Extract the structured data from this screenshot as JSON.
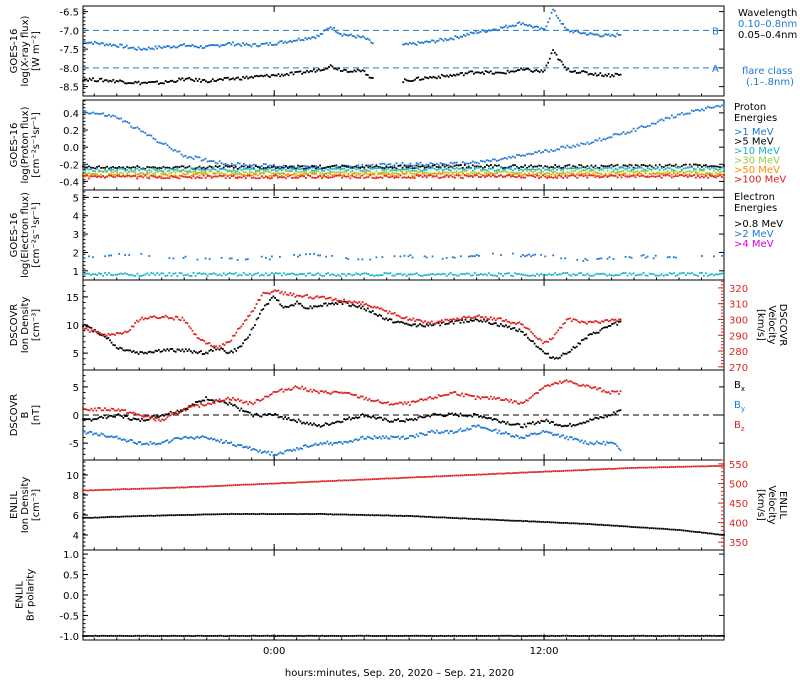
{
  "xaxis": {
    "title": "hours:minutes, Sep. 20, 2020 – Sep. 21, 2020",
    "ticks": [
      "0:00",
      "12:00"
    ],
    "tick_hours": [
      0,
      12
    ],
    "range_hours": [
      -8.5,
      20
    ]
  },
  "colors": {
    "black": "#000000",
    "blue": "#1f78d1",
    "cyan": "#16b3c4",
    "green": "#9acd32",
    "orange": "#ff8c00",
    "red": "#dd2222",
    "magenta": "#e000e0"
  },
  "chart_data": [
    {
      "type": "scatter",
      "id": "xray",
      "ylabel": [
        "GOES-16",
        "log(X-ray flux)",
        "[W m⁻²]"
      ],
      "ylim": [
        -8.75,
        -6.35
      ],
      "yticks": [
        -6.5,
        -7.0,
        -7.5,
        -8.0,
        -8.5
      ],
      "ytick_labels": [
        "-6.5",
        "-7.0",
        "-7.5",
        "-8.0",
        "-8.5"
      ],
      "reference_lines": [
        {
          "y": -7.0,
          "label": "B"
        },
        {
          "y": -8.0,
          "label": "A"
        }
      ],
      "legend": {
        "title": "Wavelength",
        "entries": [
          "0.10–0.8nm",
          "0.05–0.4nm"
        ],
        "extra": [
          "flare class",
          "(.1–.8nm)"
        ]
      },
      "data_gaps_hours": [
        [
          4.4,
          5.7
        ],
        [
          15.4,
          20
        ]
      ],
      "series": [
        {
          "color": "blue",
          "x": [
            -8.5,
            -7,
            -6,
            -5,
            -4,
            -3,
            -2,
            -1,
            0,
            1,
            2,
            2.5,
            3,
            4,
            4.4,
            5.7,
            7,
            8,
            9,
            10,
            11,
            12,
            12.4,
            13,
            14,
            15,
            15.4
          ],
          "y": [
            -7.3,
            -7.4,
            -7.5,
            -7.45,
            -7.4,
            -7.45,
            -7.35,
            -7.4,
            -7.35,
            -7.25,
            -7.15,
            -6.9,
            -7.1,
            -7.2,
            -7.35,
            -7.4,
            -7.3,
            -7.2,
            -7.05,
            -6.95,
            -6.8,
            -7.0,
            -6.45,
            -7.0,
            -7.1,
            -7.15,
            -7.1
          ]
        },
        {
          "color": "black",
          "x": [
            -8.5,
            -7,
            -6,
            -5,
            -4,
            -3,
            -2,
            -1,
            0,
            1,
            2,
            2.5,
            3,
            4,
            4.4,
            5.7,
            7,
            8,
            9,
            10,
            11,
            12,
            12.4,
            13,
            14,
            15,
            15.4
          ],
          "y": [
            -8.3,
            -8.35,
            -8.4,
            -8.4,
            -8.3,
            -8.35,
            -8.3,
            -8.25,
            -8.2,
            -8.15,
            -8.05,
            -7.95,
            -8.05,
            -8.1,
            -8.3,
            -8.35,
            -8.25,
            -8.2,
            -8.1,
            -8.15,
            -8.05,
            -8.1,
            -7.55,
            -8.05,
            -8.15,
            -8.2,
            -8.15
          ]
        }
      ]
    },
    {
      "type": "scatter",
      "id": "proton",
      "ylabel": [
        "GOES-16",
        "log(Proton flux)",
        "[cm⁻²s⁻¹sr⁻¹]"
      ],
      "ylim": [
        -0.5,
        0.55
      ],
      "yticks": [
        0.4,
        0.2,
        0.0,
        -0.2,
        -0.4
      ],
      "ytick_labels": [
        "0.4",
        "0.2",
        "0.0",
        "-0.2",
        "-0.4"
      ],
      "legend": {
        "title": "Proton",
        "title2": "Energies",
        "entries": [
          ">1 MeV",
          ">5 MeV",
          ">10 MeV",
          ">30 MeV",
          ">50 MeV",
          ">100 MeV"
        ]
      },
      "series": [
        {
          "name": ">1 MeV",
          "color": "blue",
          "x": [
            -8.5,
            -7,
            -6,
            -5,
            -4,
            -2,
            0,
            2,
            4,
            6,
            8,
            10,
            12,
            14,
            16,
            18,
            20
          ],
          "y": [
            0.42,
            0.35,
            0.2,
            0.05,
            -0.1,
            -0.2,
            -0.22,
            -0.24,
            -0.22,
            -0.2,
            -0.2,
            -0.15,
            -0.05,
            0.05,
            0.2,
            0.38,
            0.5
          ]
        },
        {
          "name": ">5 MeV",
          "color": "black",
          "x": [
            -8.5,
            20
          ],
          "y": [
            -0.24,
            -0.22
          ]
        },
        {
          "name": ">10 MeV",
          "color": "cyan",
          "x": [
            -8.5,
            20
          ],
          "y": [
            -0.27,
            -0.25
          ]
        },
        {
          "name": ">30 MeV",
          "color": "green",
          "x": [
            -8.5,
            20
          ],
          "y": [
            -0.3,
            -0.29
          ]
        },
        {
          "name": ">50 MeV",
          "color": "orange",
          "x": [
            -8.5,
            20
          ],
          "y": [
            -0.33,
            -0.32
          ]
        },
        {
          "name": ">100 MeV",
          "color": "red",
          "x": [
            -8.5,
            20
          ],
          "y": [
            -0.35,
            -0.34
          ]
        }
      ]
    },
    {
      "type": "scatter",
      "id": "electron",
      "ylabel": [
        "GOES-16",
        "log(Electron flux)",
        "[cm⁻²s⁻¹sr⁻¹]"
      ],
      "ylim": [
        0.5,
        5.4
      ],
      "yticks": [
        5,
        4,
        3,
        2,
        1
      ],
      "ytick_labels": [
        "5",
        "4",
        "3",
        "2",
        "1"
      ],
      "reference_lines": [
        {
          "y": 5.0,
          "label": ""
        }
      ],
      "legend": {
        "title": "Electron",
        "title2": "Energies",
        "entries": [
          ">0.8 MeV",
          ">2 MeV",
          ">4 MeV"
        ]
      },
      "series": [
        {
          "name": ">2 MeV",
          "color": "blue",
          "x": [
            -8.5,
            -7,
            -5,
            -3,
            0,
            2,
            4,
            6,
            8,
            10,
            12,
            14,
            16,
            18,
            20
          ],
          "y": [
            1.7,
            1.9,
            1.8,
            1.6,
            1.7,
            1.9,
            1.6,
            1.8,
            1.7,
            1.9,
            1.8,
            1.6,
            1.8,
            1.7,
            1.8
          ]
        },
        {
          "name": ">4 MeV",
          "color": "cyan",
          "x": [
            -8.5,
            20
          ],
          "y": [
            0.8,
            0.8
          ]
        }
      ]
    },
    {
      "type": "scatter",
      "id": "dscovr_plasma",
      "ylabel": [
        "DSCOVR",
        "Ion Density",
        "[cm⁻³]"
      ],
      "ylabel_right": [
        "DSCOVR",
        "Velocity",
        "[km/s]"
      ],
      "ylim": [
        2,
        18
      ],
      "yticks": [
        15,
        10,
        5
      ],
      "ytick_labels": [
        "15",
        "10",
        "5"
      ],
      "ylim_right": [
        268,
        325
      ],
      "yticks_right": [
        320,
        310,
        300,
        290,
        280,
        270
      ],
      "ytick_labels_right": [
        "320",
        "310",
        "300",
        "290",
        "280",
        "270"
      ],
      "series": [
        {
          "color": "black",
          "axis": "left",
          "x": [
            -8.5,
            -8,
            -7.5,
            -7,
            -6,
            -5,
            -4,
            -3,
            -2.5,
            -2,
            -1.5,
            -1,
            -0.5,
            0,
            0.5,
            1,
            1.5,
            2,
            3,
            4,
            5,
            6,
            7,
            8,
            9,
            10,
            11,
            12,
            12.5,
            13,
            14,
            15,
            15.4
          ],
          "y": [
            10,
            9,
            8,
            6,
            5,
            5.5,
            5.5,
            5,
            6,
            5,
            6,
            9,
            13,
            15,
            13,
            14,
            13,
            13.5,
            14,
            13,
            11,
            10,
            10,
            10.5,
            11,
            10,
            9,
            5,
            4,
            5,
            8,
            10,
            10.5
          ]
        },
        {
          "color": "red",
          "axis": "right",
          "x": [
            -8.5,
            -7.5,
            -6.5,
            -6,
            -5,
            -4,
            -3.5,
            -3,
            -2.5,
            -2,
            -1.5,
            -1,
            -0.5,
            0,
            1,
            2,
            3,
            4,
            5,
            6,
            7,
            8,
            9,
            10,
            11,
            12,
            12.5,
            13,
            14,
            15,
            15.4
          ],
          "y": [
            294,
            290,
            292,
            300,
            302,
            300,
            290,
            285,
            282,
            286,
            295,
            305,
            316,
            318,
            315,
            314,
            312,
            310,
            305,
            300,
            298,
            300,
            302,
            300,
            297,
            285,
            290,
            300,
            298,
            299,
            300
          ]
        }
      ]
    },
    {
      "type": "scatter",
      "id": "dscovr_mag",
      "ylabel": [
        "DSCOVR",
        "B",
        "[nT]"
      ],
      "ylim": [
        -8,
        8
      ],
      "yticks": [
        5,
        0,
        -5
      ],
      "ytick_labels": [
        "5",
        "0",
        "-5"
      ],
      "reference_lines": [
        {
          "y": 0,
          "label": ""
        }
      ],
      "legend": {
        "entries": [
          "Bx",
          "By",
          "Bz"
        ]
      },
      "series": [
        {
          "name": "Bx",
          "color": "black",
          "x": [
            -8.5,
            -7,
            -6,
            -5,
            -4,
            -3,
            -2,
            -1,
            0,
            1,
            2,
            3,
            4,
            5,
            6,
            7,
            8,
            9,
            10,
            11,
            12,
            13,
            14,
            15,
            15.4
          ],
          "y": [
            -1,
            0,
            -1,
            0,
            1,
            3,
            2,
            0,
            0,
            -1,
            -2,
            -1,
            0,
            -1,
            -1,
            0,
            0,
            0,
            -1,
            -2,
            -1,
            -2,
            -1,
            0,
            1
          ]
        },
        {
          "name": "By",
          "color": "blue",
          "x": [
            -8.5,
            -7,
            -6,
            -5,
            -4,
            -3,
            -2,
            -1,
            0,
            1,
            2,
            3,
            4,
            5,
            6,
            7,
            8,
            9,
            10,
            11,
            12,
            13,
            14,
            15,
            15.4
          ],
          "y": [
            -3,
            -4,
            -5,
            -5,
            -4,
            -4,
            -5,
            -6,
            -7,
            -6,
            -5,
            -5,
            -4,
            -4,
            -4,
            -3,
            -3,
            -2,
            -3,
            -4,
            -3,
            -4,
            -5,
            -5,
            -6
          ]
        },
        {
          "name": "Bz",
          "color": "red",
          "x": [
            -8.5,
            -7,
            -6,
            -5,
            -4,
            -3,
            -2,
            -1,
            0,
            1,
            2,
            3,
            4,
            5,
            6,
            7,
            8,
            9,
            10,
            11,
            12,
            13,
            14,
            15,
            15.4
          ],
          "y": [
            1,
            1,
            0,
            -1,
            1,
            2,
            3,
            2,
            4,
            5,
            4,
            4,
            3,
            2,
            2,
            3,
            4,
            3,
            3,
            2,
            5,
            6,
            5,
            4,
            4
          ]
        }
      ]
    },
    {
      "type": "scatter",
      "id": "enlil_plasma",
      "ylabel": [
        "ENLIL",
        "Ion Density",
        "[cm⁻³]"
      ],
      "ylabel_right": [
        "ENLIL",
        "Velocity",
        "[km/s]"
      ],
      "ylim": [
        2.5,
        11.5
      ],
      "yticks": [
        10,
        8,
        6,
        4
      ],
      "ytick_labels": [
        "10",
        "8",
        "6",
        "4"
      ],
      "ylim_right": [
        330,
        560
      ],
      "yticks_right": [
        550,
        500,
        450,
        400,
        350
      ],
      "ytick_labels_right": [
        "550",
        "500",
        "450",
        "400",
        "350"
      ],
      "series": [
        {
          "color": "black",
          "axis": "left",
          "x": [
            -8.5,
            -6,
            -4,
            -2,
            0,
            2,
            4,
            6,
            8,
            10,
            12,
            14,
            16,
            18,
            20
          ],
          "y": [
            5.7,
            5.9,
            6.0,
            6.1,
            6.1,
            6.1,
            6.0,
            5.9,
            5.7,
            5.5,
            5.3,
            5.1,
            4.8,
            4.5,
            4.0
          ]
        },
        {
          "color": "red",
          "axis": "right",
          "x": [
            -8.5,
            -4,
            0,
            4,
            8,
            12,
            16,
            20
          ],
          "y": [
            482,
            490,
            500,
            510,
            520,
            530,
            540,
            545
          ]
        }
      ]
    },
    {
      "type": "scatter",
      "id": "enlil_polarity",
      "ylabel": [
        "ENLIL",
        "Br polarity"
      ],
      "ylim": [
        -1.1,
        1.1
      ],
      "yticks": [
        1.0,
        0.5,
        0.0,
        -0.5,
        -1.0
      ],
      "ytick_labels": [
        "1.0",
        "0.5",
        "0.0",
        "-0.5",
        "-1.0"
      ],
      "series": [
        {
          "color": "black",
          "x": [
            -8.5,
            20
          ],
          "y": [
            -1.0,
            -1.0
          ]
        }
      ]
    }
  ]
}
